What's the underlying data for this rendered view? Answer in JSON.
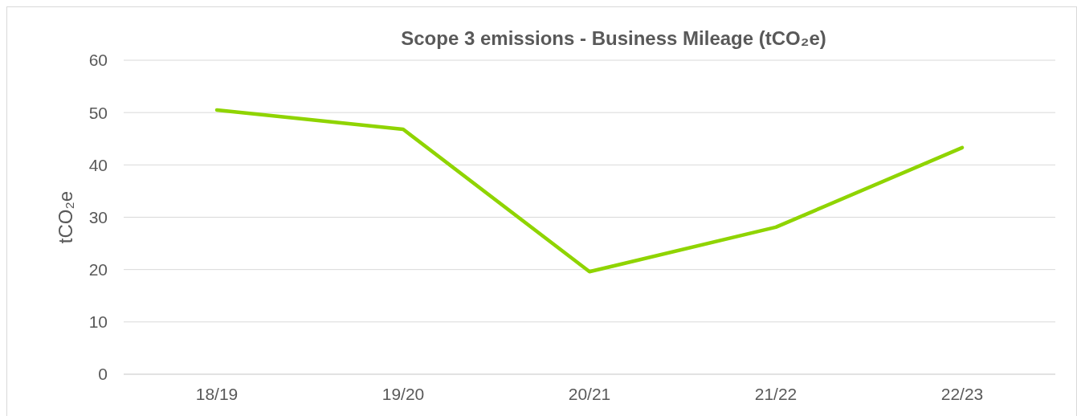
{
  "chart_data": {
    "type": "line",
    "title": "Scope 3 emissions - Business Mileage (tCO₂e)",
    "ylabel": "tCO₂e",
    "categories": [
      "18/19",
      "19/20",
      "20/21",
      "21/22",
      "22/23"
    ],
    "series": [
      {
        "color": "#8fd400",
        "values": [
          50.5,
          46.8,
          19.6,
          28.1,
          43.3
        ]
      }
    ],
    "ylim": [
      0,
      60
    ],
    "yticks": [
      0,
      10,
      20,
      30,
      40,
      50,
      60
    ],
    "grid": "y",
    "marker": "none",
    "line_style": "solid"
  }
}
